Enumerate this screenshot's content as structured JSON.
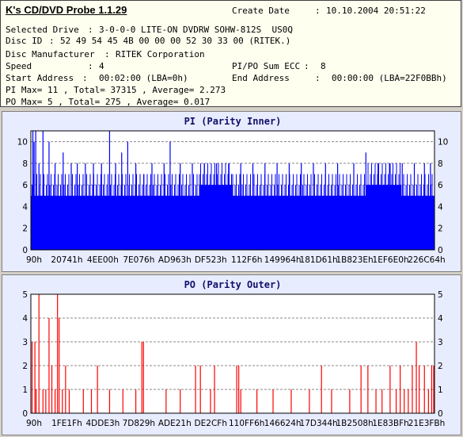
{
  "app": {
    "title": "K's CD/DVD Probe 1.1.29"
  },
  "info": {
    "create_date_label": "Create Date",
    "create_date_value": "10.10.2004 20:51:22",
    "selected_drive_label": "Selected Drive",
    "selected_drive_value": "3-0-0-0 LITE-ON DVDRW SOHW-812S  US0Q",
    "disc_id_label": "Disc ID",
    "disc_id_value": "52 49 54 45 4B 00 00 00 52 30 33 00 (RITEK.)",
    "manufacturer_label": "Disc Manufacturer",
    "manufacturer_value": "RITEK Corporation",
    "speed_label": "Speed",
    "speed_value": "4",
    "pipo_label": "PI/PO Sum ECC",
    "pipo_value": "8",
    "start_label": "Start Address",
    "start_value": "00:02:00 (LBA=0h)",
    "end_label": "End Address",
    "end_value": "00:00:00 (LBA=22F0BBh)",
    "pi_summary": "PI Max= 11 , Total= 37315 , Average= 2.273",
    "po_summary": "PO Max= 5 , Total= 275 , Average= 0.017"
  },
  "chart_data": [
    {
      "type": "bar",
      "title": "PI (Parity Inner)",
      "color": "#0000ff",
      "ylim": [
        0,
        11
      ],
      "yticks": [
        0,
        2,
        4,
        6,
        8,
        10
      ],
      "xtick_labels": [
        "90h",
        "20741h",
        "4EE00h",
        "7E076h",
        "AD963h",
        "DF523h",
        "112F6h",
        "149964h",
        "181D61h",
        "1B823Eh",
        "1EF6E0h",
        "226C64h"
      ],
      "baseline": [
        5,
        5,
        5,
        5,
        5,
        6,
        5,
        5,
        5,
        5,
        6,
        5
      ],
      "spikes": [
        {
          "pos": 0.005,
          "value": 11
        },
        {
          "pos": 0.008,
          "value": 10
        },
        {
          "pos": 0.012,
          "value": 11
        },
        {
          "pos": 0.02,
          "value": 8
        },
        {
          "pos": 0.03,
          "value": 11
        },
        {
          "pos": 0.045,
          "value": 10
        },
        {
          "pos": 0.06,
          "value": 8
        },
        {
          "pos": 0.08,
          "value": 9
        },
        {
          "pos": 0.1,
          "value": 8
        },
        {
          "pos": 0.115,
          "value": 8
        },
        {
          "pos": 0.135,
          "value": 8
        },
        {
          "pos": 0.155,
          "value": 8
        },
        {
          "pos": 0.175,
          "value": 8
        },
        {
          "pos": 0.195,
          "value": 11
        },
        {
          "pos": 0.21,
          "value": 8
        },
        {
          "pos": 0.225,
          "value": 9
        },
        {
          "pos": 0.24,
          "value": 10
        },
        {
          "pos": 0.26,
          "value": 8
        },
        {
          "pos": 0.28,
          "value": 7
        },
        {
          "pos": 0.3,
          "value": 8
        },
        {
          "pos": 0.33,
          "value": 8
        },
        {
          "pos": 0.345,
          "value": 10
        },
        {
          "pos": 0.37,
          "value": 8
        },
        {
          "pos": 0.4,
          "value": 8
        },
        {
          "pos": 0.43,
          "value": 8
        },
        {
          "pos": 0.46,
          "value": 8
        },
        {
          "pos": 0.49,
          "value": 8
        },
        {
          "pos": 0.52,
          "value": 8
        },
        {
          "pos": 0.55,
          "value": 8
        },
        {
          "pos": 0.58,
          "value": 8
        },
        {
          "pos": 0.61,
          "value": 8
        },
        {
          "pos": 0.64,
          "value": 8
        },
        {
          "pos": 0.67,
          "value": 8
        },
        {
          "pos": 0.7,
          "value": 8
        },
        {
          "pos": 0.73,
          "value": 8
        },
        {
          "pos": 0.76,
          "value": 8
        },
        {
          "pos": 0.8,
          "value": 8
        },
        {
          "pos": 0.83,
          "value": 9
        },
        {
          "pos": 0.86,
          "value": 8
        },
        {
          "pos": 0.89,
          "value": 8
        },
        {
          "pos": 0.92,
          "value": 8
        },
        {
          "pos": 0.95,
          "value": 8
        },
        {
          "pos": 0.975,
          "value": 8
        },
        {
          "pos": 0.99,
          "value": 8
        }
      ]
    },
    {
      "type": "bar",
      "title": "PO (Parity Outer)",
      "color": "#ff0000",
      "ylim": [
        0,
        5
      ],
      "yticks": [
        0,
        1,
        2,
        3,
        4,
        5
      ],
      "xtick_labels": [
        "90h",
        "1FE1Fh",
        "4DDE3h",
        "7D829h",
        "ADE21h",
        "DE2CFh",
        "110FF6h",
        "146624h",
        "17D344h",
        "1B2508h",
        "1E83BFh",
        "21E3FBh"
      ],
      "bars": [
        {
          "pos": 0.003,
          "value": 3
        },
        {
          "pos": 0.01,
          "value": 3
        },
        {
          "pos": 0.013,
          "value": 1
        },
        {
          "pos": 0.02,
          "value": 5
        },
        {
          "pos": 0.03,
          "value": 1
        },
        {
          "pos": 0.037,
          "value": 1
        },
        {
          "pos": 0.045,
          "value": 4
        },
        {
          "pos": 0.052,
          "value": 2
        },
        {
          "pos": 0.06,
          "value": 1
        },
        {
          "pos": 0.066,
          "value": 5
        },
        {
          "pos": 0.07,
          "value": 4
        },
        {
          "pos": 0.078,
          "value": 1
        },
        {
          "pos": 0.086,
          "value": 2
        },
        {
          "pos": 0.095,
          "value": 1
        },
        {
          "pos": 0.13,
          "value": 1
        },
        {
          "pos": 0.15,
          "value": 1
        },
        {
          "pos": 0.165,
          "value": 2
        },
        {
          "pos": 0.195,
          "value": 1
        },
        {
          "pos": 0.228,
          "value": 1
        },
        {
          "pos": 0.26,
          "value": 1
        },
        {
          "pos": 0.275,
          "value": 3
        },
        {
          "pos": 0.279,
          "value": 3
        },
        {
          "pos": 0.335,
          "value": 1
        },
        {
          "pos": 0.37,
          "value": 1
        },
        {
          "pos": 0.408,
          "value": 2
        },
        {
          "pos": 0.42,
          "value": 2
        },
        {
          "pos": 0.445,
          "value": 1
        },
        {
          "pos": 0.455,
          "value": 2
        },
        {
          "pos": 0.51,
          "value": 2
        },
        {
          "pos": 0.515,
          "value": 2
        },
        {
          "pos": 0.52,
          "value": 1
        },
        {
          "pos": 0.56,
          "value": 1
        },
        {
          "pos": 0.6,
          "value": 1
        },
        {
          "pos": 0.645,
          "value": 1
        },
        {
          "pos": 0.69,
          "value": 1
        },
        {
          "pos": 0.72,
          "value": 2
        },
        {
          "pos": 0.745,
          "value": 1
        },
        {
          "pos": 0.79,
          "value": 1
        },
        {
          "pos": 0.818,
          "value": 2
        },
        {
          "pos": 0.835,
          "value": 2
        },
        {
          "pos": 0.855,
          "value": 1
        },
        {
          "pos": 0.87,
          "value": 1
        },
        {
          "pos": 0.89,
          "value": 2
        },
        {
          "pos": 0.905,
          "value": 1
        },
        {
          "pos": 0.915,
          "value": 2
        },
        {
          "pos": 0.925,
          "value": 1
        },
        {
          "pos": 0.935,
          "value": 1
        },
        {
          "pos": 0.945,
          "value": 2
        },
        {
          "pos": 0.955,
          "value": 3
        },
        {
          "pos": 0.962,
          "value": 2
        },
        {
          "pos": 0.975,
          "value": 2
        },
        {
          "pos": 0.985,
          "value": 1
        },
        {
          "pos": 0.993,
          "value": 2
        },
        {
          "pos": 0.998,
          "value": 2
        }
      ]
    }
  ]
}
